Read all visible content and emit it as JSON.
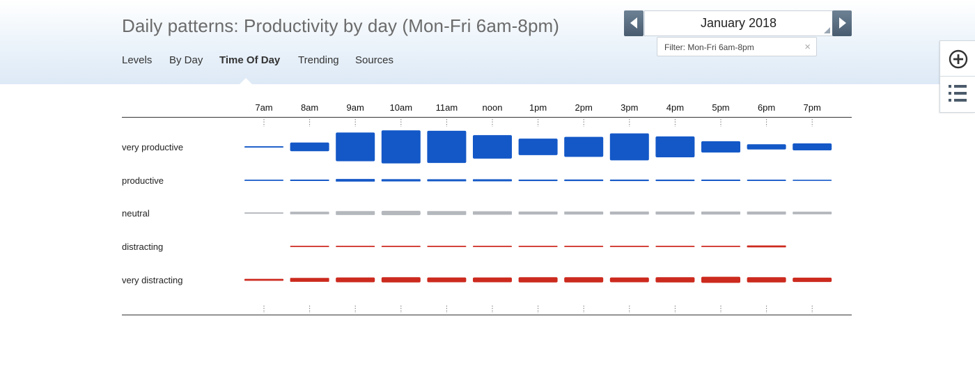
{
  "header": {
    "title": "Daily patterns: Productivity by day (Mon-Fri 6am-8pm)",
    "tabs": [
      {
        "label": "Levels",
        "active": false
      },
      {
        "label": "By Day",
        "active": false
      },
      {
        "label": "Time Of Day",
        "active": true
      },
      {
        "label": "Trending",
        "active": false
      },
      {
        "label": "Sources",
        "active": false
      }
    ]
  },
  "date_picker": {
    "month": "January 2018",
    "prev_icon": "triangle-left-icon",
    "next_icon": "triangle-right-icon"
  },
  "filter": {
    "label": "Filter: Mon-Fri 6am-8pm",
    "close": "×"
  },
  "side_panel": {
    "add_icon": "plus-circle-icon",
    "list_icon": "list-icon"
  },
  "chart_data": {
    "type": "heatmap",
    "title": "Daily patterns: Productivity by day (Mon-Fri 6am-8pm)",
    "x_labels": [
      "7am",
      "8am",
      "9am",
      "10am",
      "11am",
      "noon",
      "1pm",
      "2pm",
      "3pm",
      "4pm",
      "5pm",
      "6pm",
      "7pm"
    ],
    "rows": [
      {
        "name": "very productive",
        "color": "#1458c7",
        "values": [
          1.5,
          10,
          33,
          38,
          37,
          27,
          19,
          23,
          31,
          24,
          13,
          6,
          8
        ]
      },
      {
        "name": "productive",
        "color": "#1458c7",
        "values": [
          1.4,
          1.6,
          3,
          2.6,
          2.4,
          2.4,
          1.7,
          1.8,
          1.7,
          1.7,
          1.6,
          1.5,
          1.3
        ]
      },
      {
        "name": "neutral",
        "color": "#b4b8bd",
        "values": [
          1.5,
          3,
          4.5,
          5,
          4.5,
          4,
          3.5,
          3.5,
          3.5,
          3.5,
          3.5,
          3.5,
          3
        ]
      },
      {
        "name": "distracting",
        "color": "#cc2a1e",
        "values": [
          0,
          1.4,
          1.4,
          1.4,
          1.4,
          1.4,
          1.4,
          1.4,
          1.4,
          1.4,
          1.4,
          2.2,
          0
        ]
      },
      {
        "name": "very distracting",
        "color": "#cc2a1e",
        "values": [
          2.2,
          4.5,
          5.5,
          6,
          5.5,
          5.5,
          6,
          6,
          5.5,
          6,
          7,
          6,
          5
        ]
      }
    ],
    "legend": "none",
    "grid": false
  }
}
